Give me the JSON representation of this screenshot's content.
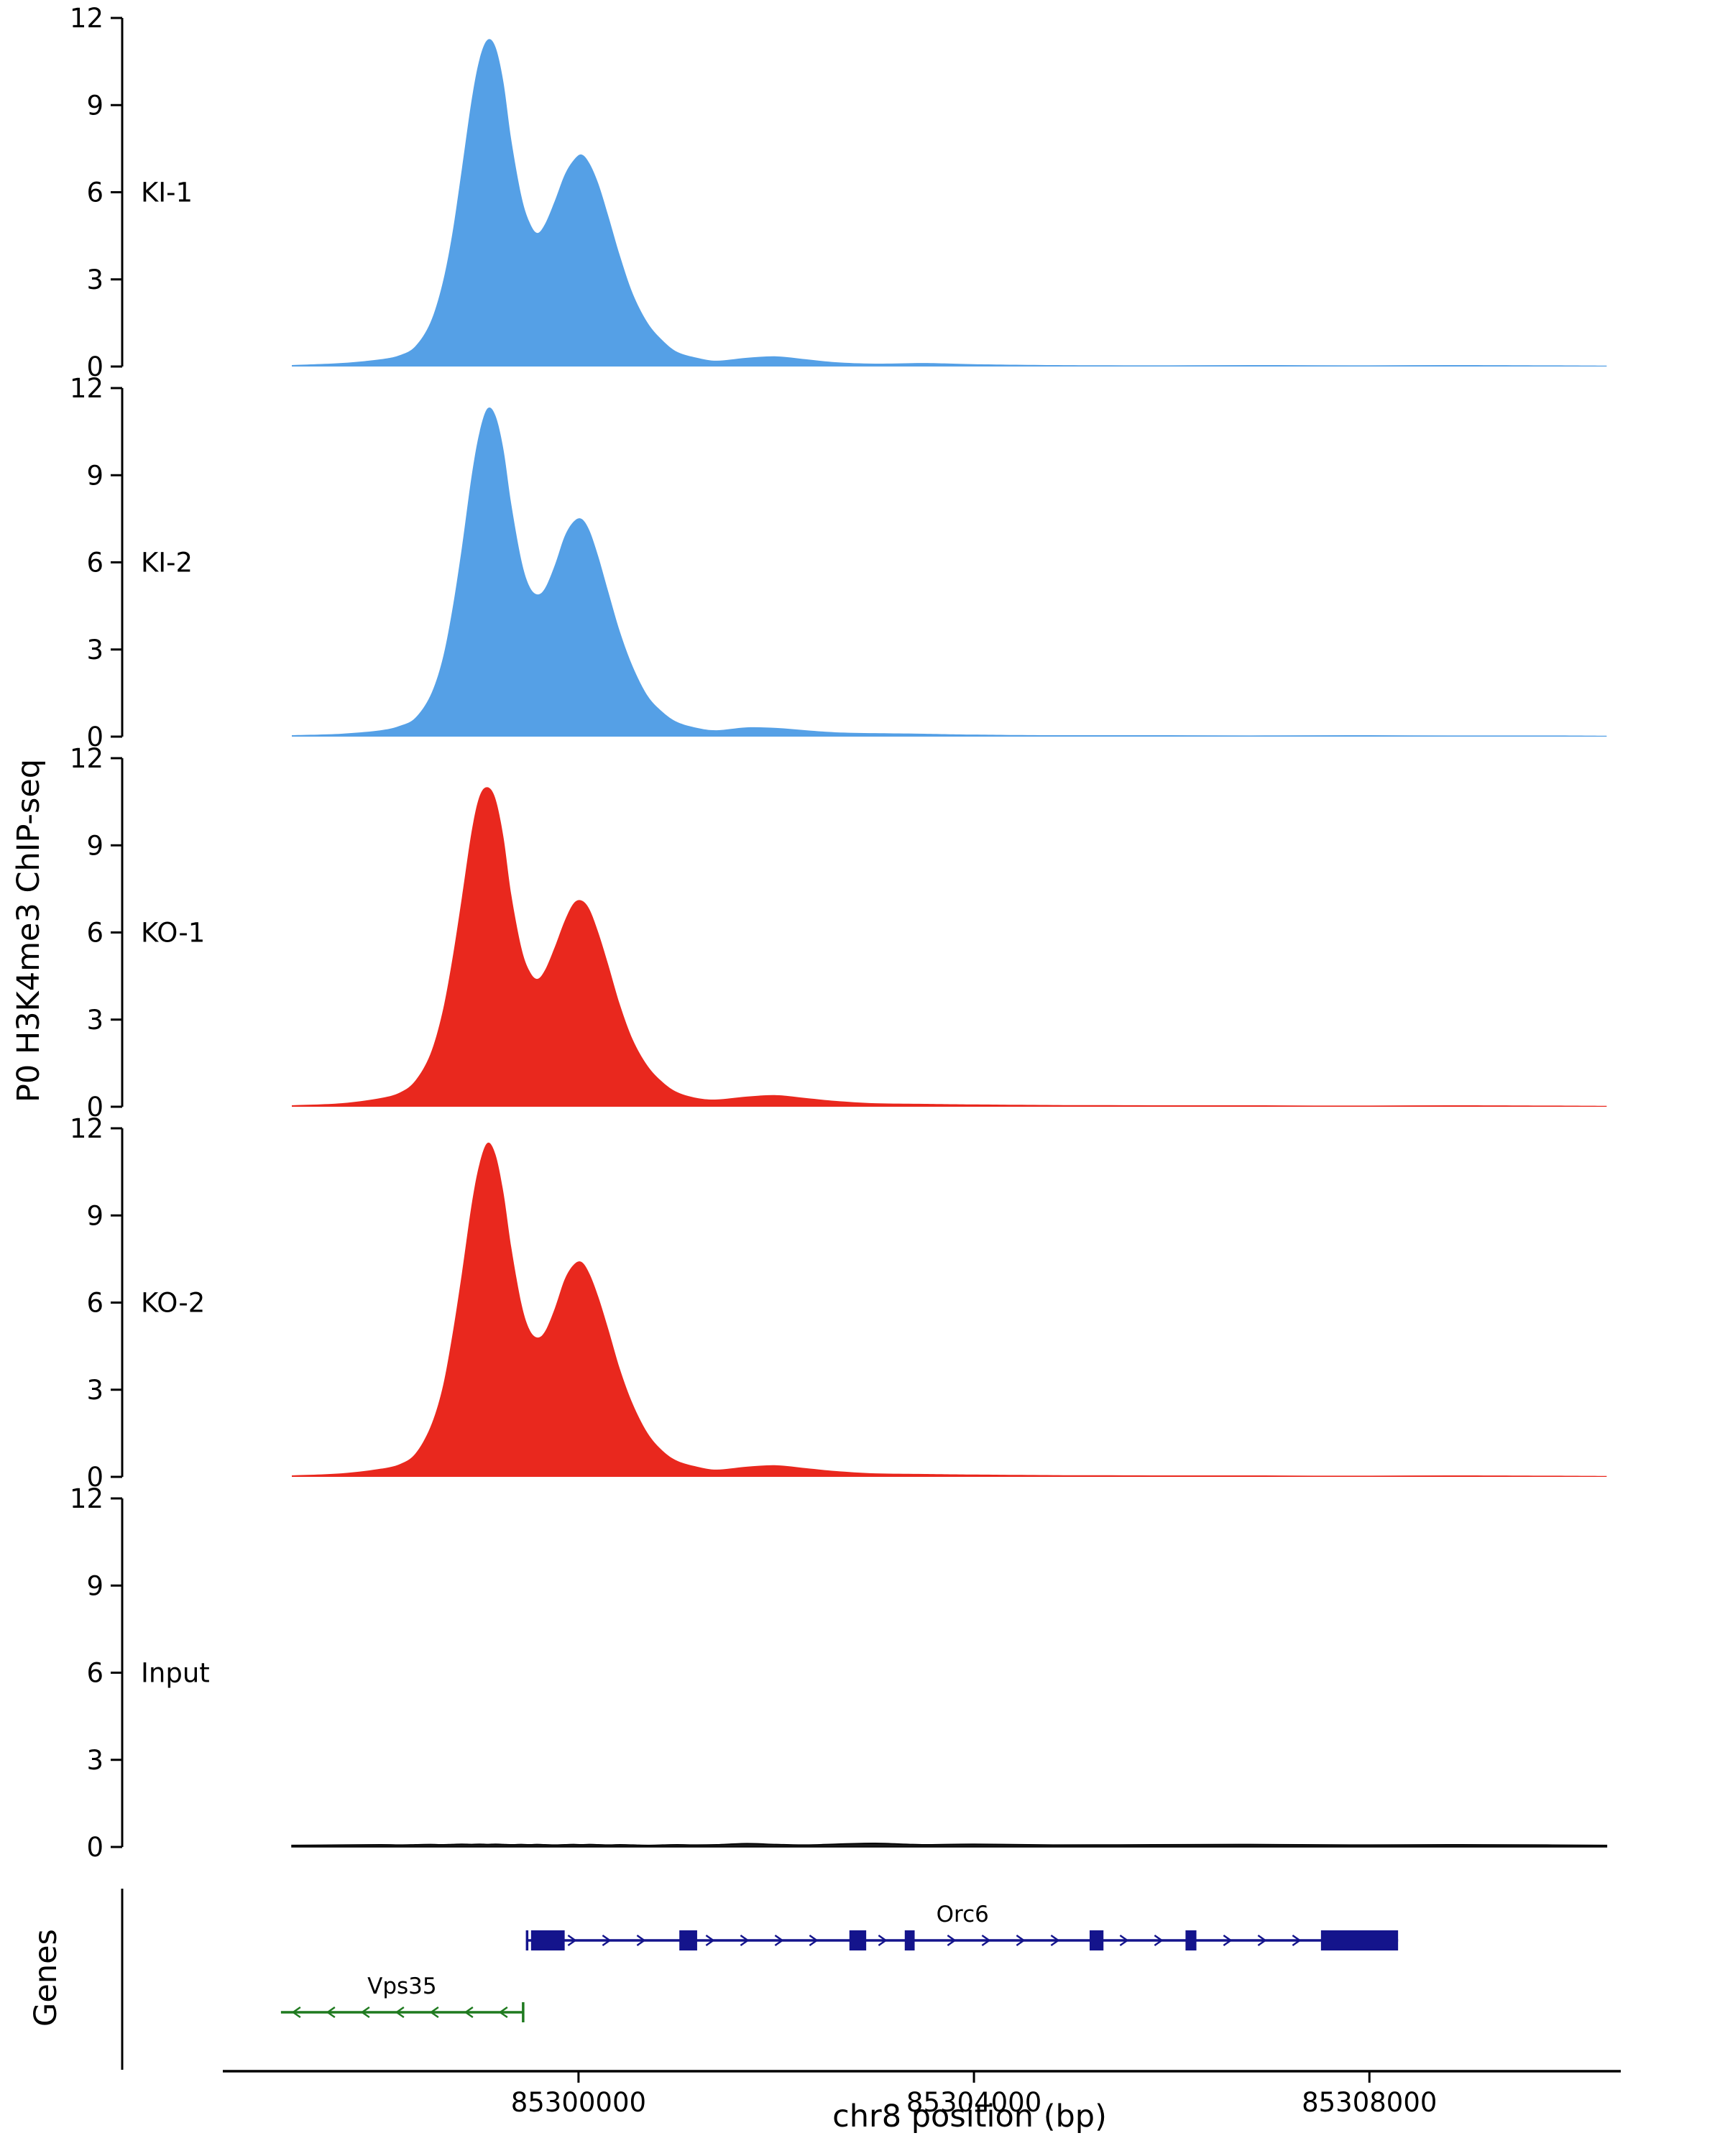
{
  "genes_panel": {
    "title": "Genes"
  },
  "chart_data": {
    "type": "area",
    "title": "",
    "xlabel": "chr8 position (bp)",
    "ylabel": "P0 H3K4me3 ChIP-seq",
    "x_range": [
      85297100,
      85310470
    ],
    "x_ticks": [
      {
        "value": 85300000,
        "label": "85300000"
      },
      {
        "value": 85304000,
        "label": "85304000"
      },
      {
        "value": 85308000,
        "label": "85308000"
      }
    ],
    "y_range": [
      0,
      12
    ],
    "y_ticks": [
      0,
      3,
      6,
      9,
      12
    ],
    "x": [
      85297100,
      85297600,
      85298000,
      85298200,
      85298350,
      85298500,
      85298620,
      85298720,
      85298820,
      85298920,
      85299000,
      85299080,
      85299160,
      85299240,
      85299320,
      85299420,
      85299500,
      85299580,
      85299660,
      85299760,
      85299860,
      85299950,
      85300030,
      85300110,
      85300200,
      85300300,
      85300420,
      85300550,
      85300700,
      85300850,
      85301000,
      85301200,
      85301400,
      85301700,
      85302000,
      85302300,
      85302600,
      85303000,
      85303500,
      85304000,
      85304800,
      85305800,
      85306800,
      85307800,
      85308800,
      85309800,
      85310400
    ],
    "tracks": [
      {
        "label": "KI-1",
        "color": "#55A0E6",
        "values": [
          0.05,
          0.12,
          0.25,
          0.4,
          0.7,
          1.5,
          2.8,
          4.5,
          6.8,
          9.2,
          10.6,
          11.25,
          11.0,
          9.8,
          7.8,
          5.9,
          5.0,
          4.6,
          4.9,
          5.7,
          6.6,
          7.1,
          7.3,
          7.0,
          6.3,
          5.2,
          3.8,
          2.5,
          1.5,
          0.9,
          0.5,
          0.3,
          0.2,
          0.3,
          0.35,
          0.25,
          0.15,
          0.1,
          0.12,
          0.08,
          0.05,
          0.04,
          0.05,
          0.04,
          0.05,
          0.04,
          0.03
        ]
      },
      {
        "label": "KI-2",
        "color": "#55A0E6",
        "values": [
          0.05,
          0.1,
          0.22,
          0.38,
          0.65,
          1.4,
          2.6,
          4.3,
          6.5,
          9.0,
          10.5,
          11.3,
          11.05,
          9.9,
          8.0,
          6.1,
          5.2,
          4.9,
          5.1,
          5.9,
          6.9,
          7.4,
          7.5,
          7.1,
          6.2,
          5.0,
          3.6,
          2.4,
          1.4,
          0.85,
          0.5,
          0.3,
          0.22,
          0.32,
          0.3,
          0.22,
          0.15,
          0.12,
          0.1,
          0.07,
          0.05,
          0.05,
          0.04,
          0.05,
          0.04,
          0.04,
          0.03
        ]
      },
      {
        "label": "KO-1",
        "color": "#E9281E",
        "values": [
          0.05,
          0.12,
          0.3,
          0.5,
          0.9,
          1.8,
          3.2,
          5.0,
          7.2,
          9.5,
          10.7,
          11.0,
          10.6,
          9.3,
          7.3,
          5.5,
          4.7,
          4.4,
          4.7,
          5.5,
          6.4,
          7.0,
          7.1,
          6.8,
          6.0,
          4.9,
          3.5,
          2.3,
          1.4,
          0.85,
          0.5,
          0.3,
          0.25,
          0.35,
          0.4,
          0.3,
          0.2,
          0.12,
          0.1,
          0.08,
          0.06,
          0.05,
          0.05,
          0.04,
          0.05,
          0.04,
          0.03
        ]
      },
      {
        "label": "KO-2",
        "color": "#E9281E",
        "values": [
          0.05,
          0.12,
          0.28,
          0.45,
          0.8,
          1.7,
          3.0,
          4.8,
          7.0,
          9.4,
          10.8,
          11.5,
          11.1,
          9.8,
          7.9,
          6.0,
          5.1,
          4.8,
          5.0,
          5.8,
          6.8,
          7.3,
          7.4,
          7.0,
          6.2,
          5.1,
          3.7,
          2.5,
          1.5,
          0.9,
          0.55,
          0.35,
          0.25,
          0.35,
          0.4,
          0.3,
          0.2,
          0.12,
          0.1,
          0.08,
          0.06,
          0.05,
          0.05,
          0.04,
          0.05,
          0.04,
          0.03
        ]
      },
      {
        "label": "Input",
        "color": "#1A1A1A",
        "values": [
          0.06,
          0.07,
          0.08,
          0.07,
          0.08,
          0.09,
          0.08,
          0.09,
          0.1,
          0.09,
          0.1,
          0.09,
          0.1,
          0.09,
          0.08,
          0.09,
          0.08,
          0.09,
          0.08,
          0.07,
          0.08,
          0.09,
          0.08,
          0.09,
          0.08,
          0.07,
          0.08,
          0.07,
          0.06,
          0.07,
          0.08,
          0.07,
          0.08,
          0.12,
          0.09,
          0.07,
          0.1,
          0.13,
          0.08,
          0.1,
          0.07,
          0.08,
          0.09,
          0.07,
          0.08,
          0.07,
          0.06
        ]
      }
    ],
    "genes": [
      {
        "name": "Orc6",
        "strand": "+",
        "color": "#14148C",
        "start": 85299480,
        "end": 85308290,
        "exons": [
          [
            85299520,
            85299860
          ],
          [
            85301020,
            85301200
          ],
          [
            85302740,
            85302910
          ],
          [
            85303300,
            85303400
          ],
          [
            85305170,
            85305310
          ],
          [
            85306140,
            85306250
          ],
          [
            85307510,
            85308290
          ]
        ]
      },
      {
        "name": "Vps35",
        "strand": "-",
        "color": "#1F7A1F",
        "start": 85296990,
        "end": 85299440,
        "exons": []
      }
    ]
  }
}
